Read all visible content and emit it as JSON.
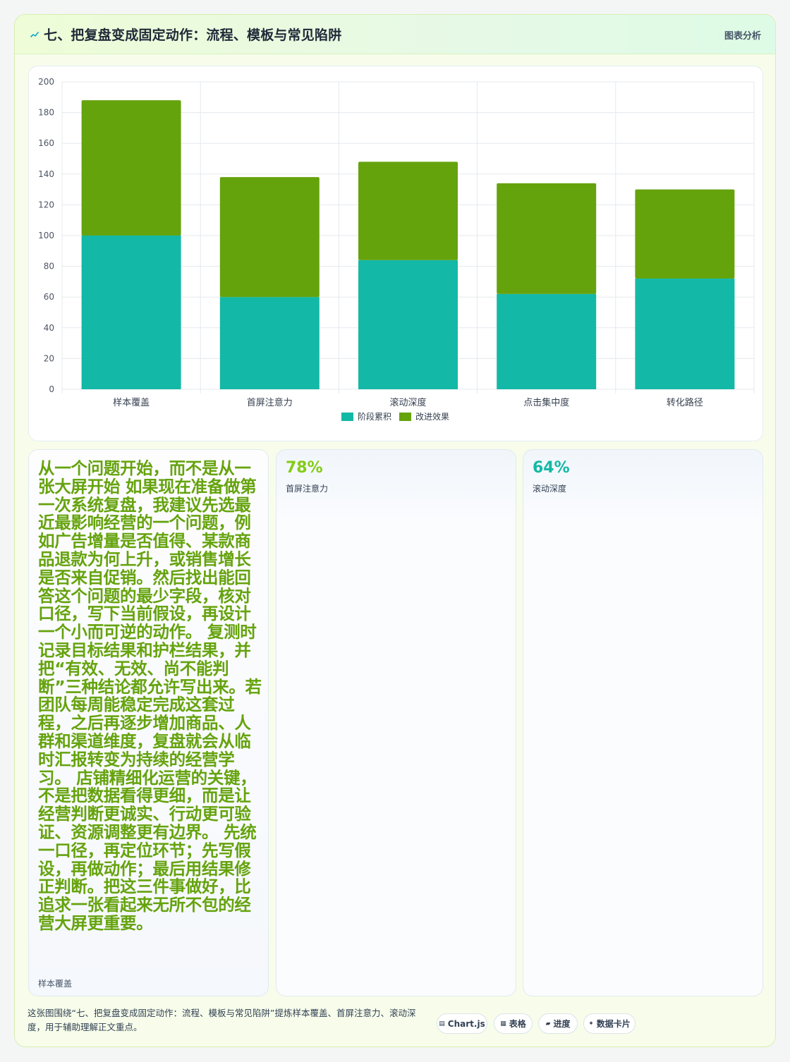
{
  "header": {
    "title": "七、把复盘变成固定动作：流程、模板与常见陷阱",
    "tag": "图表分析"
  },
  "colors": {
    "accent_green": "#65a30d",
    "accent_teal": "#14b8a6",
    "stat_green": "#84cc16"
  },
  "chart_data": {
    "type": "bar",
    "stacked": true,
    "categories": [
      "样本覆盖",
      "首屏注意力",
      "滚动深度",
      "点击集中度",
      "转化路径"
    ],
    "series": [
      {
        "name": "阶段累积",
        "color": "#14b8a6",
        "values": [
          100,
          60,
          84,
          62,
          72
        ]
      },
      {
        "name": "改进效果",
        "color": "#65a30d",
        "values": [
          88,
          78,
          64,
          72,
          58
        ]
      }
    ],
    "ylim": [
      0,
      200
    ],
    "yticks": [
      0,
      20,
      40,
      60,
      80,
      100,
      120,
      140,
      160,
      180,
      200
    ],
    "grid": true,
    "legend": "bottom-center"
  },
  "text_card": {
    "body": "从一个问题开始，而不是从一张大屏开始 如果现在准备做第一次系统复盘，我建议先选最近最影响经营的一个问题，例如广告增量是否值得、某款商品退款为何上升，或销售增长是否来自促销。然后找出能回答这个问题的最少字段，核对口径，写下当前假设，再设计一个小而可逆的动作。 复测时记录目标结果和护栏结果，并把“有效、无效、尚不能判断”三种结论都允许写出来。若团队每周能稳定完成这套过程，之后再逐步增加商品、人群和渠道维度，复盘就会从临时汇报转变为持续的经营学习。 店铺精细化运营的关键，不是把数据看得更细，而是让经营判断更诚实、行动更可验证、资源调整更有边界。 先统一口径，再定位环节；先写假设，再做动作；最后用结果修正判断。把这三件事做好，比追求一张看起来无所不包的经营大屏更重要。",
    "label": "样本覆盖"
  },
  "stats": [
    {
      "value": "78%",
      "label": "首屏注意力",
      "color": "#84cc16"
    },
    {
      "value": "64%",
      "label": "滚动深度",
      "color": "#14b8a6"
    }
  ],
  "footer": {
    "caption": "这张图围绕“七、把复盘变成固定动作：流程、模板与常见陷阱”提炼样本覆盖、首屏注意力、滚动深度，用于辅助理解正文重点。",
    "pills": [
      {
        "icon": "▤",
        "label": "Chart.js"
      },
      {
        "icon": "▦",
        "label": "表格"
      },
      {
        "icon": "▰",
        "label": "进度"
      },
      {
        "icon": "✦",
        "label": "数据卡片"
      }
    ]
  }
}
